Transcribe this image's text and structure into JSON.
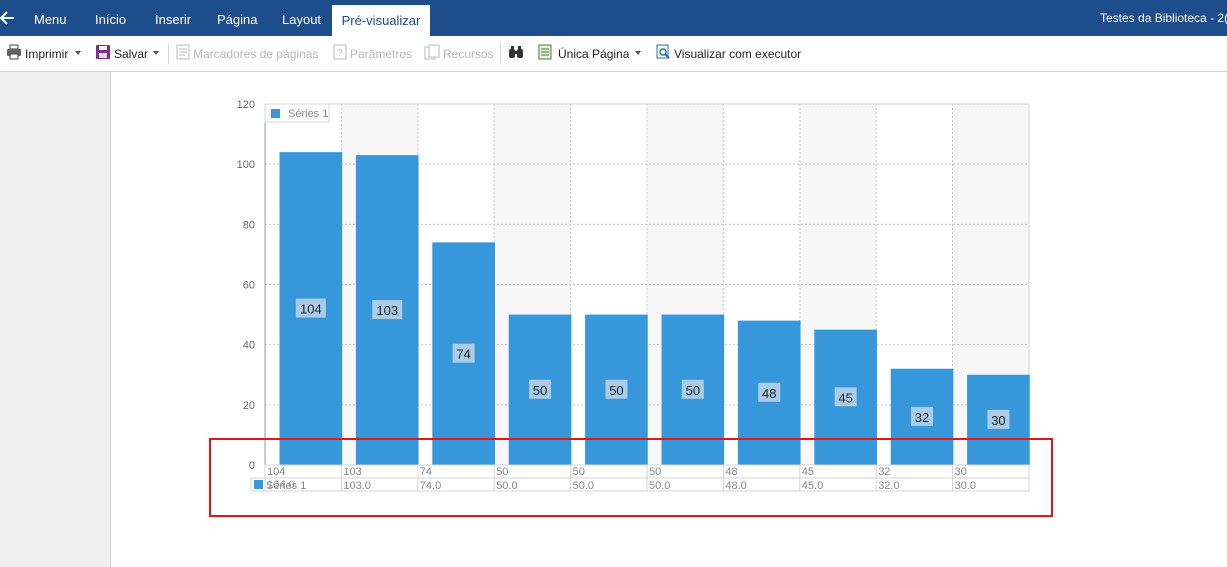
{
  "header": {
    "back_icon": "arrow-left-icon",
    "tabs": [
      {
        "label": "Menu"
      },
      {
        "label": "Início"
      },
      {
        "label": "Inserir"
      },
      {
        "label": "Página"
      },
      {
        "label": "Layout"
      },
      {
        "label": "Pré-visualizar",
        "active": true
      }
    ],
    "title": "Testes da Biblioteca - 2("
  },
  "toolbar": {
    "print_label": "Imprimir",
    "save_label": "Salvar",
    "bookmarks_label": "Marcadores de páginas",
    "params_label": "Parâmetros",
    "resources_label": "Recursos",
    "find_icon": "binoculars-icon",
    "single_page_label": "Única Página",
    "view_executor_label": "Visualizar com executor"
  },
  "colors": {
    "ribbon": "#1e4d8c",
    "bar": "#3698db",
    "highlight": "#e0161b"
  },
  "chart_data": {
    "type": "bar",
    "legend": {
      "entries": [
        "Séries 1"
      ],
      "placement": "top-left"
    },
    "categories": [
      "104",
      "103",
      "74",
      "50",
      "50",
      "50",
      "48",
      "45",
      "32",
      "30"
    ],
    "series": [
      {
        "name": "Séries 1",
        "values": [
          104,
          103,
          74,
          50,
          50,
          50,
          48,
          45,
          32,
          30
        ]
      }
    ],
    "ylim": [
      0,
      120
    ],
    "yticks": [
      0,
      20,
      40,
      60,
      80,
      100,
      120
    ],
    "grid": true,
    "data_table": {
      "row_label": "Séries 1",
      "overlap_text": "104.0",
      "values": [
        "103.0",
        "74.0",
        "50.0",
        "50.0",
        "50.0",
        "48.0",
        "45.0",
        "32.0",
        "30.0"
      ]
    }
  }
}
